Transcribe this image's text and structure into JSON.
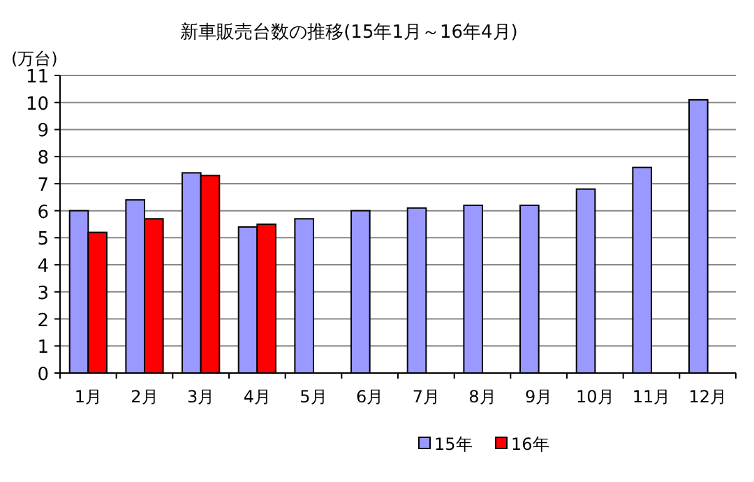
{
  "chart_data": {
    "type": "bar",
    "title": "新車販売台数の推移(15年1月～16年4月)",
    "ylabel": "(万台)",
    "categories": [
      "1月",
      "2月",
      "3月",
      "4月",
      "5月",
      "6月",
      "7月",
      "8月",
      "9月",
      "10月",
      "11月",
      "12月"
    ],
    "series": [
      {
        "name": "15年",
        "color": "#9999ff",
        "values": [
          6.0,
          6.4,
          7.4,
          5.4,
          5.7,
          6.0,
          6.1,
          6.2,
          6.2,
          6.8,
          7.6,
          10.1
        ]
      },
      {
        "name": "16年",
        "color": "#ff0000",
        "values": [
          5.2,
          5.7,
          7.3,
          5.5,
          null,
          null,
          null,
          null,
          null,
          null,
          null,
          null
        ]
      }
    ],
    "ylim": [
      0,
      11
    ],
    "yticks": [
      0,
      1,
      2,
      3,
      4,
      5,
      6,
      7,
      8,
      9,
      10,
      11
    ],
    "grid": "y",
    "legend": "bottom"
  }
}
